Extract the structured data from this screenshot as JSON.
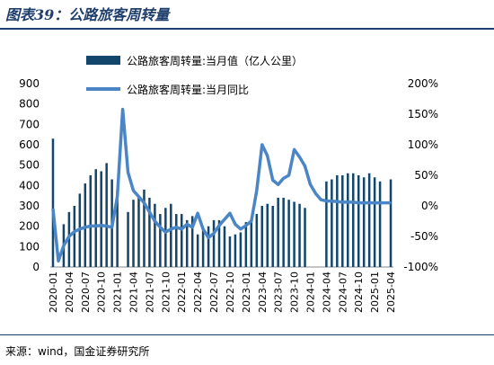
{
  "page": {
    "title": "图表39：公路旅客周转量",
    "source": "来源：wind，国金证券研究所"
  },
  "colors": {
    "bar": "#12466b",
    "line": "#4a86c6",
    "title": "#1f3e6b"
  },
  "chart_data": {
    "type": "bar",
    "title": "",
    "xlabel": "",
    "ylabel": "",
    "y_left": {
      "lim": [
        0,
        900
      ],
      "ticks": [
        "900",
        "800",
        "700",
        "600",
        "500",
        "400",
        "300",
        "200",
        "100",
        "0"
      ]
    },
    "y_right": {
      "lim": [
        -100,
        200
      ],
      "ticks": [
        "200%",
        "150%",
        "100%",
        "50%",
        "0%",
        "-50%",
        "-100%"
      ]
    },
    "x_tick_labels": [
      "2020-01",
      "2020-04",
      "2020-07",
      "2020-10",
      "2021-01",
      "2021-04",
      "2021-07",
      "2021-10",
      "2022-01",
      "2022-04",
      "2022-07",
      "2022-10",
      "2023-01",
      "2023-04",
      "2023-07",
      "2023-10",
      "2024-01",
      "2024-04",
      "2024-07",
      "2024-10",
      "2025-01",
      "2025-04"
    ],
    "categories": [
      "2020-01",
      "2020-02",
      "2020-03",
      "2020-04",
      "2020-05",
      "2020-06",
      "2020-07",
      "2020-08",
      "2020-09",
      "2020-10",
      "2020-11",
      "2020-12",
      "2021-01",
      "2021-02",
      "2021-03",
      "2021-04",
      "2021-05",
      "2021-06",
      "2021-07",
      "2021-08",
      "2021-09",
      "2021-10",
      "2021-11",
      "2021-12",
      "2022-01",
      "2022-02",
      "2022-03",
      "2022-04",
      "2022-05",
      "2022-06",
      "2022-07",
      "2022-08",
      "2022-09",
      "2022-10",
      "2022-11",
      "2022-12",
      "2023-01",
      "2023-02",
      "2023-03",
      "2023-04",
      "2023-05",
      "2023-06",
      "2023-07",
      "2023-08",
      "2023-09",
      "2023-10",
      "2023-11",
      "2023-12",
      "2024-01",
      "2024-02",
      "2024-03",
      "2024-04",
      "2024-05",
      "2024-06",
      "2024-07",
      "2024-08",
      "2024-09",
      "2024-10",
      "2024-11",
      "2024-12",
      "2025-01",
      "2025-02",
      "2025-03",
      "2025-04"
    ],
    "series": [
      {
        "name": "公路旅客周转量:当月值（亿人公里）",
        "kind": "bar",
        "axis": "left",
        "values": [
          630,
          null,
          210,
          270,
          300,
          360,
          410,
          450,
          480,
          470,
          510,
          430,
          380,
          null,
          270,
          330,
          350,
          380,
          340,
          310,
          260,
          290,
          310,
          260,
          260,
          230,
          250,
          160,
          180,
          200,
          230,
          230,
          200,
          150,
          160,
          170,
          220,
          230,
          260,
          300,
          310,
          300,
          340,
          340,
          330,
          320,
          310,
          290,
          null,
          null,
          null,
          420,
          430,
          450,
          450,
          460,
          460,
          450,
          440,
          460,
          440,
          420,
          null,
          430
        ]
      },
      {
        "name": "公路旅客周转量:当月同比",
        "kind": "line",
        "axis": "right",
        "values": [
          -5,
          -90,
          -65,
          -50,
          -42,
          -38,
          -35,
          -33,
          -33,
          -32,
          -33,
          -35,
          15,
          158,
          55,
          25,
          15,
          5,
          -10,
          -25,
          -35,
          -43,
          -38,
          -35,
          -38,
          -30,
          -35,
          -12,
          -38,
          -52,
          -45,
          -32,
          -22,
          -12,
          -30,
          -38,
          -32,
          -25,
          25,
          100,
          82,
          42,
          35,
          45,
          50,
          92,
          80,
          65,
          35,
          20,
          10,
          8,
          8,
          7,
          6,
          6,
          6,
          5,
          5,
          5,
          5,
          5,
          5,
          5
        ]
      }
    ],
    "legend": {
      "position": "top-center",
      "bar_label": "公路旅客周转量:当月值（亿人公里）",
      "line_label": "公路旅客周转量:当月同比"
    },
    "grid": false
  }
}
